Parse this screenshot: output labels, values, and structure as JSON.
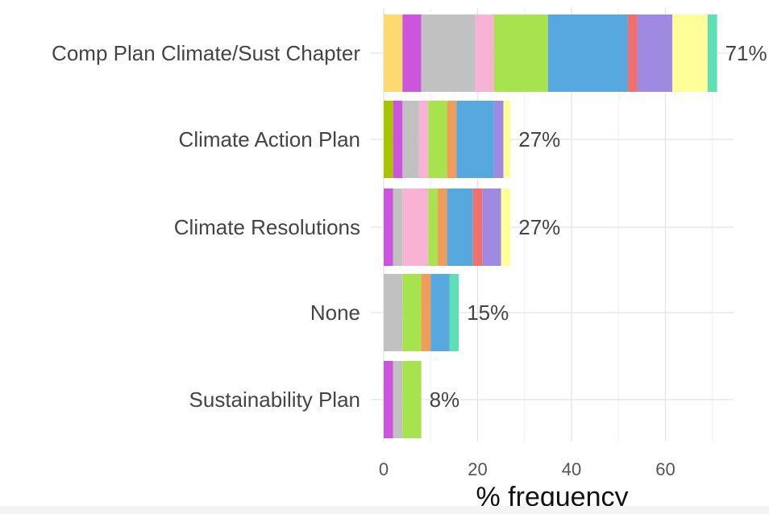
{
  "chart_data": {
    "type": "bar",
    "orientation": "horizontal",
    "stacked": true,
    "title": "",
    "xlabel": "% frequency",
    "ylabel": "",
    "xlim": [
      0,
      75
    ],
    "x_ticks": [
      0,
      20,
      40,
      60
    ],
    "grid": true,
    "categories": [
      "Comp Plan Climate/Sust Chapter",
      "Climate Action Plan",
      "Climate Resolutions",
      "None",
      "Sustainability Plan"
    ],
    "totals": [
      71,
      27,
      27,
      15,
      8
    ],
    "total_labels": [
      "71%",
      "27%",
      "27%",
      "15%",
      "8%"
    ],
    "segments": [
      [
        {
          "color": "#FDDA70",
          "value": 4.0
        },
        {
          "color": "#CC55DD",
          "value": 4.0
        },
        {
          "color": "#C1C1C1",
          "value": 11.5
        },
        {
          "color": "#F8B2D4",
          "value": 4.0
        },
        {
          "color": "#A7E34E",
          "value": 11.5
        },
        {
          "color": "#56A8DF",
          "value": 17.0
        },
        {
          "color": "#F07070",
          "value": 2.0
        },
        {
          "color": "#9E8AE0",
          "value": 7.5
        },
        {
          "color": "#FFFF99",
          "value": 7.5
        },
        {
          "color": "#5EDFB6",
          "value": 2.0
        }
      ],
      [
        {
          "color": "#A8C400",
          "value": 2.0
        },
        {
          "color": "#CC55DD",
          "value": 2.0
        },
        {
          "color": "#C1C1C1",
          "value": 3.5
        },
        {
          "color": "#F8B2D4",
          "value": 2.0
        },
        {
          "color": "#A7E34E",
          "value": 4.0
        },
        {
          "color": "#F29C5A",
          "value": 2.0
        },
        {
          "color": "#56A8DF",
          "value": 8.0
        },
        {
          "color": "#9E8AE0",
          "value": 2.0
        },
        {
          "color": "#FFFF99",
          "value": 1.5
        }
      ],
      [
        {
          "color": "#CC55DD",
          "value": 2.0
        },
        {
          "color": "#C1C1C1",
          "value": 2.0
        },
        {
          "color": "#F8B2D4",
          "value": 5.5
        },
        {
          "color": "#A7E34E",
          "value": 2.0
        },
        {
          "color": "#F29C5A",
          "value": 2.0
        },
        {
          "color": "#56A8DF",
          "value": 5.5
        },
        {
          "color": "#F07070",
          "value": 2.0
        },
        {
          "color": "#9E8AE0",
          "value": 4.0
        },
        {
          "color": "#FFFF99",
          "value": 2.0
        }
      ],
      [
        {
          "color": "#C1C1C1",
          "value": 4.0
        },
        {
          "color": "#A7E34E",
          "value": 4.0
        },
        {
          "color": "#F29C5A",
          "value": 2.0
        },
        {
          "color": "#56A8DF",
          "value": 4.0
        },
        {
          "color": "#5EDFB6",
          "value": 2.0
        }
      ],
      [
        {
          "color": "#CC55DD",
          "value": 2.0
        },
        {
          "color": "#C1C1C1",
          "value": 2.0
        },
        {
          "color": "#A7E34E",
          "value": 4.0
        }
      ]
    ]
  }
}
